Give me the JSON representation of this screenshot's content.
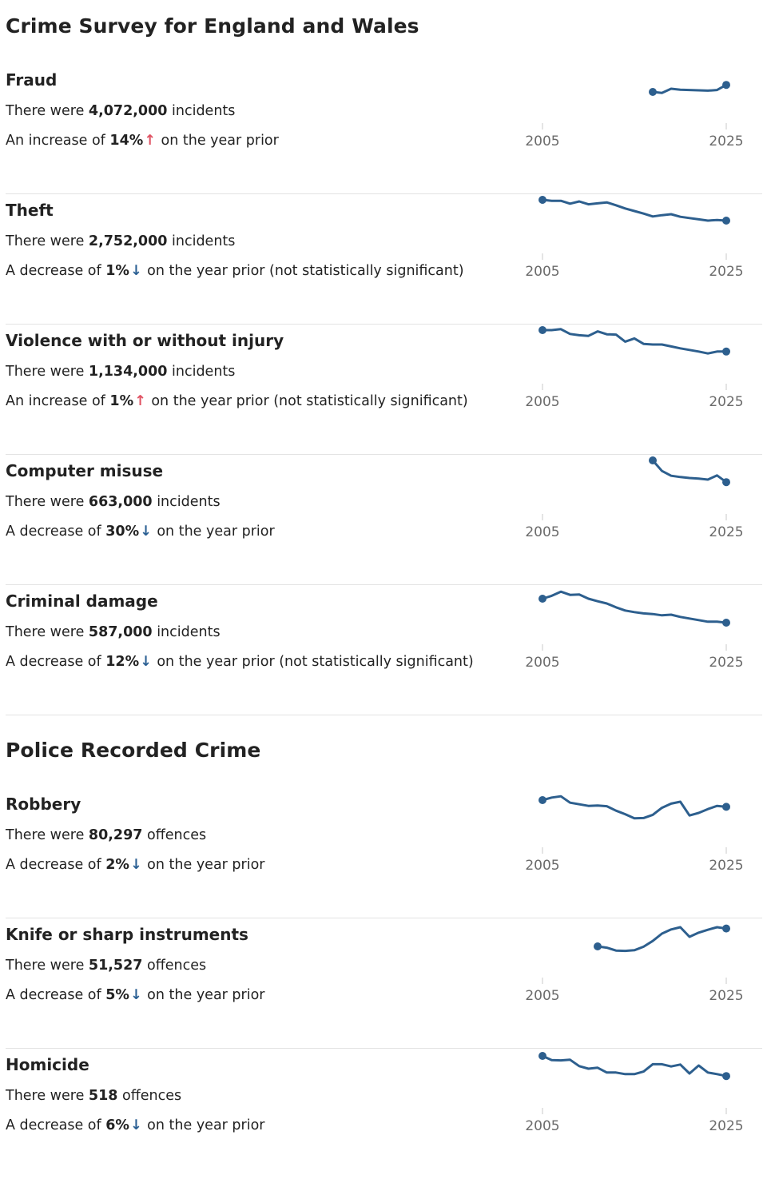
{
  "sections": [
    {
      "title": "Crime Survey for England and Wales",
      "items": [
        {
          "name": "Fraud",
          "count_prefix": "There were ",
          "count": "4,072,000",
          "count_suffix": " incidents",
          "change_prefix": "An increase of ",
          "change_value": "14%",
          "direction": "up",
          "change_suffix": " on the year prior"
        },
        {
          "name": "Theft",
          "count_prefix": "There were ",
          "count": "2,752,000",
          "count_suffix": " incidents",
          "change_prefix": "A decrease of ",
          "change_value": "1%",
          "direction": "down",
          "change_suffix": " on the year prior (not statistically significant)"
        },
        {
          "name": "Violence with or without injury",
          "count_prefix": "There were ",
          "count": "1,134,000",
          "count_suffix": " incidents",
          "change_prefix": "An increase of ",
          "change_value": "1%",
          "direction": "up",
          "change_suffix": " on the year prior (not statistically significant)"
        },
        {
          "name": "Computer misuse",
          "count_prefix": "There were ",
          "count": "663,000",
          "count_suffix": " incidents",
          "change_prefix": "A decrease of ",
          "change_value": "30%",
          "direction": "down",
          "change_suffix": " on the year prior"
        },
        {
          "name": "Criminal damage",
          "count_prefix": "There were ",
          "count": "587,000",
          "count_suffix": " incidents",
          "change_prefix": "A decrease of ",
          "change_value": "12%",
          "direction": "down",
          "change_suffix": " on the year prior (not statistically significant)"
        }
      ]
    },
    {
      "title": "Police Recorded Crime",
      "items": [
        {
          "name": "Robbery",
          "count_prefix": "There were ",
          "count": "80,297",
          "count_suffix": " offences",
          "change_prefix": "A decrease of ",
          "change_value": "2%",
          "direction": "down",
          "change_suffix": " on the year prior"
        },
        {
          "name": "Knife or sharp instruments",
          "count_prefix": "There were ",
          "count": "51,527",
          "count_suffix": " offences",
          "change_prefix": "A decrease of ",
          "change_value": "5%",
          "direction": "down",
          "change_suffix": " on the year prior"
        },
        {
          "name": "Homicide",
          "count_prefix": "There were ",
          "count": "518",
          "count_suffix": " offences",
          "change_prefix": "A decrease of ",
          "change_value": "6%",
          "direction": "down",
          "change_suffix": " on the year prior"
        }
      ]
    }
  ],
  "colors": {
    "line": "#2d5f8e",
    "arrow_up": "#e05263",
    "arrow_down": "#2a5f93",
    "axis_text": "#6b6b6b",
    "tick": "#c8c8c8"
  },
  "chart_data": [
    {
      "type": "line",
      "title": "Fraud",
      "xlim": [
        2005,
        2025
      ],
      "xticks": [
        2005,
        2025
      ],
      "ylim": [
        0,
        1
      ],
      "series": [
        {
          "x": [
            2017,
            2018,
            2019,
            2020,
            2021,
            2022,
            2023,
            2024,
            2025
          ],
          "values": [
            0.3,
            0.27,
            0.4,
            0.37,
            0.36,
            0.35,
            0.34,
            0.36,
            0.52
          ]
        }
      ]
    },
    {
      "type": "line",
      "title": "Theft",
      "xlim": [
        2005,
        2025
      ],
      "xticks": [
        2005,
        2025
      ],
      "ylim": [
        0,
        1
      ],
      "series": [
        {
          "x": [
            2005,
            2006,
            2007,
            2008,
            2009,
            2010,
            2011,
            2012,
            2013,
            2014,
            2015,
            2016,
            2017,
            2018,
            2019,
            2020,
            2021,
            2022,
            2023,
            2024,
            2025
          ],
          "values": [
            1.0,
            0.97,
            0.97,
            0.88,
            0.95,
            0.86,
            0.89,
            0.92,
            0.83,
            0.73,
            0.65,
            0.57,
            0.48,
            0.52,
            0.55,
            0.47,
            0.43,
            0.39,
            0.35,
            0.37,
            0.35
          ]
        }
      ]
    },
    {
      "type": "line",
      "title": "Violence with or without injury",
      "xlim": [
        2005,
        2025
      ],
      "xticks": [
        2005,
        2025
      ],
      "ylim": [
        0,
        1
      ],
      "series": [
        {
          "x": [
            2005,
            2006,
            2007,
            2008,
            2009,
            2010,
            2011,
            2012,
            2013,
            2014,
            2015,
            2016,
            2017,
            2018,
            2019,
            2020,
            2021,
            2022,
            2023,
            2024,
            2025
          ],
          "values": [
            1.0,
            1.0,
            1.03,
            0.88,
            0.84,
            0.82,
            0.96,
            0.87,
            0.86,
            0.64,
            0.74,
            0.57,
            0.55,
            0.55,
            0.49,
            0.43,
            0.38,
            0.33,
            0.27,
            0.33,
            0.33
          ]
        }
      ]
    },
    {
      "type": "line",
      "title": "Computer misuse",
      "xlim": [
        2005,
        2025
      ],
      "xticks": [
        2005,
        2025
      ],
      "ylim": [
        0,
        1
      ],
      "series": [
        {
          "x": [
            2017,
            2018,
            2019,
            2020,
            2021,
            2022,
            2023,
            2024,
            2025
          ],
          "values": [
            1.0,
            0.67,
            0.52,
            0.48,
            0.45,
            0.43,
            0.4,
            0.53,
            0.32
          ]
        }
      ]
    },
    {
      "type": "line",
      "title": "Criminal damage",
      "xlim": [
        2005,
        2025
      ],
      "xticks": [
        2005,
        2025
      ],
      "ylim": [
        0,
        1
      ],
      "series": [
        {
          "x": [
            2005,
            2006,
            2007,
            2008,
            2009,
            2010,
            2011,
            2012,
            2013,
            2014,
            2015,
            2016,
            2017,
            2018,
            2019,
            2020,
            2021,
            2022,
            2023,
            2024,
            2025
          ],
          "values": [
            0.75,
            0.84,
            0.97,
            0.87,
            0.88,
            0.75,
            0.67,
            0.6,
            0.48,
            0.38,
            0.33,
            0.29,
            0.27,
            0.23,
            0.25,
            0.18,
            0.13,
            0.08,
            0.03,
            0.03,
            0.0
          ]
        }
      ]
    },
    {
      "type": "line",
      "title": "Robbery",
      "xlim": [
        2005,
        2025
      ],
      "xticks": [
        2005,
        2025
      ],
      "ylim": [
        0,
        1
      ],
      "series": [
        {
          "x": [
            2005,
            2006,
            2007,
            2008,
            2009,
            2010,
            2011,
            2012,
            2013,
            2014,
            2015,
            2016,
            2017,
            2018,
            2019,
            2020,
            2021,
            2022,
            2023,
            2024,
            2025
          ],
          "values": [
            0.8,
            0.88,
            0.92,
            0.72,
            0.67,
            0.62,
            0.63,
            0.61,
            0.47,
            0.36,
            0.23,
            0.24,
            0.34,
            0.56,
            0.69,
            0.75,
            0.32,
            0.4,
            0.52,
            0.62,
            0.59
          ]
        }
      ]
    },
    {
      "type": "line",
      "title": "Knife or sharp instruments",
      "xlim": [
        2005,
        2025
      ],
      "xticks": [
        2005,
        2025
      ],
      "ylim": [
        0,
        1
      ],
      "series": [
        {
          "x": [
            2011,
            2012,
            2013,
            2014,
            2015,
            2016,
            2017,
            2018,
            2019,
            2020,
            2021,
            2022,
            2023,
            2024,
            2025
          ],
          "values": [
            0.3,
            0.26,
            0.17,
            0.16,
            0.18,
            0.29,
            0.47,
            0.7,
            0.83,
            0.9,
            0.6,
            0.73,
            0.82,
            0.9,
            0.86
          ]
        }
      ]
    },
    {
      "type": "line",
      "title": "Homicide",
      "xlim": [
        2005,
        2025
      ],
      "xticks": [
        2005,
        2025
      ],
      "ylim": [
        0,
        1
      ],
      "series": [
        {
          "x": [
            2005,
            2006,
            2007,
            2008,
            2009,
            2010,
            2011,
            2012,
            2013,
            2014,
            2015,
            2016,
            2017,
            2018,
            2019,
            2020,
            2021,
            2022,
            2023,
            2024,
            2025
          ],
          "values": [
            0.95,
            0.82,
            0.81,
            0.83,
            0.63,
            0.55,
            0.58,
            0.43,
            0.43,
            0.38,
            0.38,
            0.46,
            0.69,
            0.69,
            0.62,
            0.68,
            0.4,
            0.65,
            0.43,
            0.38,
            0.32
          ]
        }
      ]
    }
  ]
}
